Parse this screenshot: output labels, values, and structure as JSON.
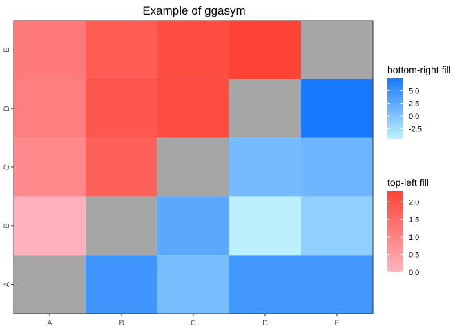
{
  "chart_data": {
    "type": "heatmap",
    "title": "Example of ggasym",
    "xlabel": "",
    "ylabel": "",
    "x_categories": [
      "A",
      "B",
      "C",
      "D",
      "E"
    ],
    "y_categories": [
      "A",
      "B",
      "C",
      "D",
      "E"
    ],
    "diagonal_color": "#A6A6A6",
    "top_left": {
      "legend_title": "top-left fill",
      "low_color": "#FFB6C1",
      "high_color": "#FF4336",
      "range": [
        0.0,
        2.3
      ],
      "legend_ticks": [
        "0.0",
        "0.5",
        "1.0",
        "1.5",
        "2.0"
      ],
      "cells": [
        {
          "x": "A",
          "y": "B",
          "value": 0.1
        },
        {
          "x": "A",
          "y": "C",
          "value": 0.9
        },
        {
          "x": "B",
          "y": "C",
          "value": 1.7
        },
        {
          "x": "A",
          "y": "D",
          "value": 1.1
        },
        {
          "x": "B",
          "y": "D",
          "value": 1.9
        },
        {
          "x": "C",
          "y": "D",
          "value": 2.1
        },
        {
          "x": "A",
          "y": "E",
          "value": 1.2
        },
        {
          "x": "B",
          "y": "E",
          "value": 1.8
        },
        {
          "x": "C",
          "y": "E",
          "value": 2.1
        },
        {
          "x": "D",
          "y": "E",
          "value": 2.3
        }
      ]
    },
    "bottom_right": {
      "legend_title": "bottom-right fill",
      "low_color": "#BFF2FF",
      "high_color": "#1878FF",
      "range": [
        -4.5,
        7.5
      ],
      "legend_ticks": [
        "-2.5",
        "0.0",
        "2.5",
        "5.0"
      ],
      "cells": [
        {
          "x": "B",
          "y": "A",
          "value": 4.6
        },
        {
          "x": "C",
          "y": "A",
          "value": 0.6
        },
        {
          "x": "D",
          "y": "A",
          "value": 4.4
        },
        {
          "x": "E",
          "y": "A",
          "value": 4.4
        },
        {
          "x": "C",
          "y": "B",
          "value": 2.7
        },
        {
          "x": "D",
          "y": "B",
          "value": -4.3
        },
        {
          "x": "E",
          "y": "B",
          "value": -1.1
        },
        {
          "x": "D",
          "y": "C",
          "value": 0.9
        },
        {
          "x": "E",
          "y": "C",
          "value": 1.4
        },
        {
          "x": "E",
          "y": "D",
          "value": 7.5
        }
      ]
    }
  }
}
